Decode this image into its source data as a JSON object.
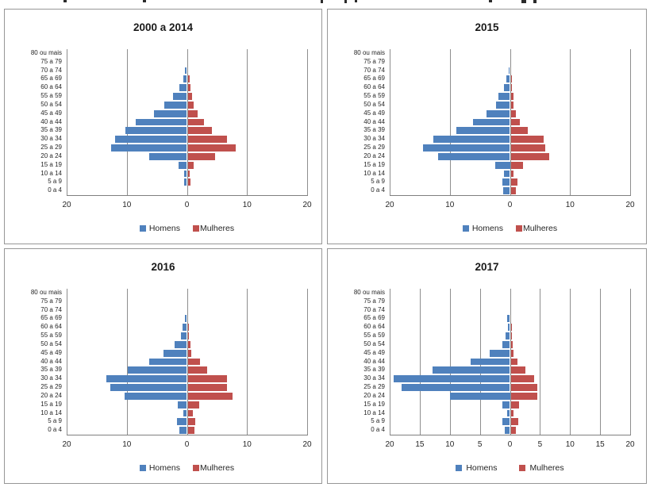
{
  "colors": {
    "homens": "#4F81BD",
    "mulheres": "#C0504D",
    "gridline": "#8e8e8e",
    "axis_line": "#7f7f7f",
    "panel_border": "#979797",
    "text": "#262626"
  },
  "legend": {
    "homens_label": "Homens",
    "mulheres_label": "Mulheres"
  },
  "age_groups_top_to_bottom": [
    "80 ou mais",
    "75 a 79",
    "70 a 74",
    "65 a 69",
    "60 a 64",
    "55 a 59",
    "50 a 54",
    "45 a 49",
    "40 a 44",
    "35 a 39",
    "30 a 34",
    "25 a 29",
    "20 a 24",
    "15 a 19",
    "10 a 14",
    "5 a 9",
    "0 a 4"
  ],
  "chart_data": [
    {
      "type": "bar",
      "orientation": "horizontal-pyramid",
      "title": "2000 a 2014",
      "categories": [
        "80 ou mais",
        "75 a 79",
        "70 a 74",
        "65 a 69",
        "60 a 64",
        "55 a 59",
        "50 a 54",
        "45 a 49",
        "40 a 44",
        "35 a 39",
        "30 a 34",
        "25 a 29",
        "20 a 24",
        "15 a 19",
        "10 a 14",
        "5 a 9",
        "0 a 4"
      ],
      "series": [
        {
          "name": "Homens",
          "values": [
            0,
            0,
            0.3,
            0.6,
            1.2,
            2.3,
            3.7,
            5.5,
            8.5,
            10.2,
            11.9,
            12.6,
            6.3,
            1.4,
            0.5,
            0.5,
            0
          ]
        },
        {
          "name": "Mulheres",
          "values": [
            0,
            0,
            0,
            0.3,
            0.4,
            0.7,
            1.0,
            1.6,
            2.7,
            4.0,
            6.5,
            8.0,
            4.5,
            1.0,
            0.35,
            0.4,
            0
          ]
        }
      ],
      "xlim": [
        -20,
        20
      ],
      "x_tick_labels": [
        "20",
        "10",
        "0",
        "10",
        "20"
      ],
      "grid_values": [
        -20,
        -10,
        0,
        10,
        20
      ],
      "legend_position": "bottom",
      "grid": true
    },
    {
      "type": "bar",
      "orientation": "horizontal-pyramid",
      "title": "2015",
      "categories": [
        "80 ou mais",
        "75 a 79",
        "70 a 74",
        "65 a 69",
        "60 a 64",
        "55 a 59",
        "50 a 54",
        "45 a 49",
        "40 a 44",
        "35 a 39",
        "30 a 34",
        "25 a 29",
        "20 a 24",
        "15 a 19",
        "10 a 14",
        "5 a 9",
        "0 a 4"
      ],
      "series": [
        {
          "name": "Homens",
          "values": [
            0,
            0,
            0.2,
            0.6,
            1.0,
            1.9,
            2.3,
            3.9,
            6.1,
            8.9,
            12.7,
            14.4,
            11.9,
            2.5,
            1.0,
            1.3,
            1.1
          ]
        },
        {
          "name": "Mulheres",
          "values": [
            0,
            0,
            0,
            0.2,
            0.25,
            0.4,
            0.5,
            0.8,
            1.5,
            2.9,
            5.5,
            5.7,
            6.4,
            2.1,
            0.5,
            1.1,
            0.9
          ]
        }
      ],
      "xlim": [
        -20,
        20
      ],
      "x_tick_labels": [
        "20",
        "10",
        "0",
        "10",
        "20"
      ],
      "grid_values": [
        -20,
        -10,
        0,
        10,
        20
      ],
      "legend_position": "bottom",
      "grid": true
    },
    {
      "type": "bar",
      "orientation": "horizontal-pyramid",
      "title": "2016",
      "categories": [
        "80 ou mais",
        "75 a 79",
        "70 a 74",
        "65 a 69",
        "60 a 64",
        "55 a 59",
        "50 a 54",
        "45 a 49",
        "40 a 44",
        "35 a 39",
        "30 a 34",
        "25 a 29",
        "20 a 24",
        "15 a 19",
        "10 a 14",
        "5 a 9",
        "0 a 4"
      ],
      "series": [
        {
          "name": "Homens",
          "values": [
            0,
            0,
            0,
            0.3,
            0.7,
            1.0,
            2.0,
            3.9,
            6.3,
            9.8,
            13.4,
            12.7,
            10.3,
            1.5,
            0.6,
            1.6,
            1.2
          ]
        },
        {
          "name": "Mulheres",
          "values": [
            0,
            0,
            0,
            0,
            0.1,
            0.2,
            0.5,
            0.6,
            2.0,
            3.3,
            6.6,
            6.5,
            7.5,
            1.9,
            0.8,
            1.3,
            1.1
          ]
        }
      ],
      "xlim": [
        -20,
        20
      ],
      "x_tick_labels": [
        "20",
        "10",
        "0",
        "10",
        "20"
      ],
      "grid_values": [
        -20,
        -10,
        0,
        10,
        20
      ],
      "legend_position": "bottom",
      "grid": true
    },
    {
      "type": "bar",
      "orientation": "horizontal-pyramid",
      "title": "2017",
      "categories": [
        "80 ou mais",
        "75 a 79",
        "70 a 74",
        "65 a 69",
        "60 a 64",
        "55 a 59",
        "50 a 54",
        "45 a 49",
        "40 a 44",
        "35 a 39",
        "30 a 34",
        "25 a 29",
        "20 a 24",
        "15 a 19",
        "10 a 14",
        "5 a 9",
        "0 a 4"
      ],
      "series": [
        {
          "name": "Homens",
          "values": [
            0,
            0,
            0,
            0.4,
            0.3,
            0.7,
            1.3,
            3.4,
            6.5,
            12.9,
            19.4,
            18.0,
            10.0,
            1.2,
            0.45,
            1.3,
            0.9
          ]
        },
        {
          "name": "Mulheres",
          "values": [
            0,
            0,
            0,
            0,
            0.1,
            0.1,
            0.3,
            0.5,
            1.1,
            2.4,
            3.9,
            4.4,
            4.4,
            1.4,
            0.45,
            1.2,
            0.9
          ]
        }
      ],
      "xlim": [
        -20,
        20
      ],
      "x_tick_labels": [
        "20",
        "15",
        "10",
        "5",
        "0",
        "5",
        "10",
        "15",
        "20"
      ],
      "grid_values": [
        -20,
        -15,
        -10,
        -5,
        0,
        5,
        10,
        15,
        20
      ],
      "legend_position": "bottom",
      "grid": true
    }
  ]
}
